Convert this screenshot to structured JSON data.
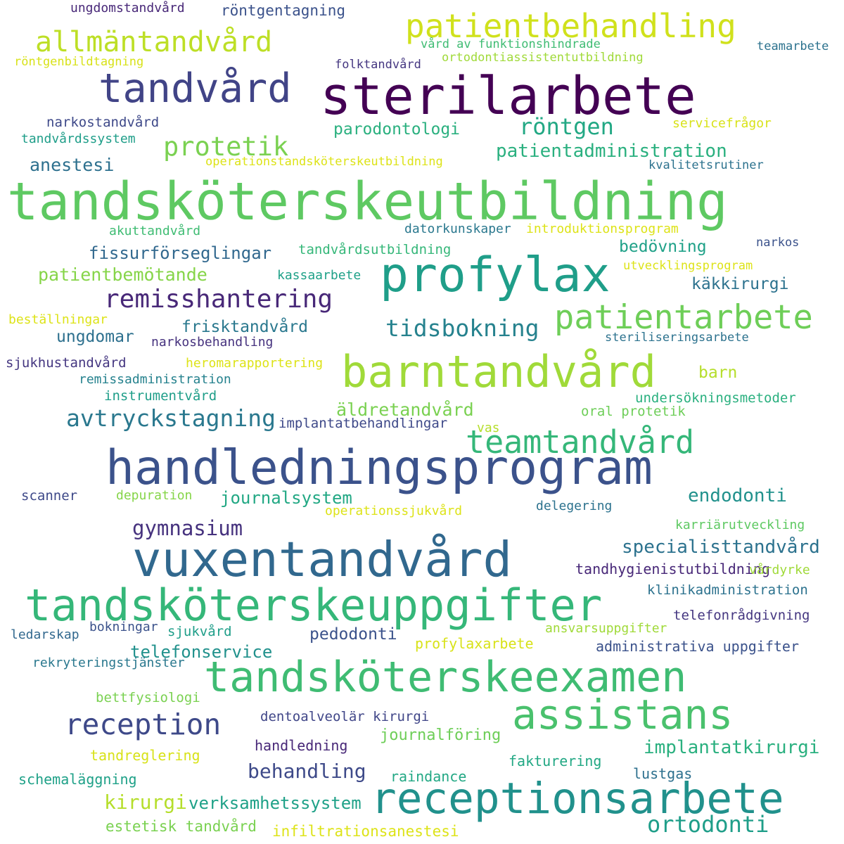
{
  "words": [
    {
      "text": "tandsköterskeutbildning",
      "color": "#5ec962"
    },
    {
      "text": "sterilarbete",
      "color": "#440154"
    },
    {
      "text": "handledningsprogram",
      "color": "#3b528b"
    },
    {
      "text": "vuxentandvård",
      "color": "#31688e"
    },
    {
      "text": "tandsköterskeuppgifter",
      "color": "#35b779"
    },
    {
      "text": "tandsköterskeexamen",
      "color": "#3fbc73"
    },
    {
      "text": "receptionsarbete",
      "color": "#21918c"
    },
    {
      "text": "barntandvård",
      "color": "#a0da39"
    },
    {
      "text": "profylax",
      "color": "#1f9e89"
    },
    {
      "text": "assistans",
      "color": "#4ac16d"
    },
    {
      "text": "tandvård",
      "color": "#414487"
    },
    {
      "text": "patientbehandling",
      "color": "#d0e11c"
    },
    {
      "text": "patientarbete",
      "color": "#6ece58"
    },
    {
      "text": "reception",
      "color": "#3e4989"
    },
    {
      "text": "teamtandvård",
      "color": "#35b779"
    },
    {
      "text": "allmäntandvård",
      "color": "#bddf26"
    },
    {
      "text": "remisshantering",
      "color": "#482878"
    },
    {
      "text": "protetik",
      "color": "#7ad151"
    },
    {
      "text": "avtryckstagning",
      "color": "#2a788e"
    },
    {
      "text": "tidsbokning",
      "color": "#26828e"
    },
    {
      "text": "röntgen",
      "color": "#22a884"
    },
    {
      "text": "gymnasium",
      "color": "#46327e"
    },
    {
      "text": "specialisttandvård",
      "color": "#2c728e"
    },
    {
      "text": "ortodonti",
      "color": "#1f9e89"
    },
    {
      "text": "patientadministration",
      "color": "#2ab07f"
    },
    {
      "text": "endodonti",
      "color": "#21918c"
    },
    {
      "text": "implantatkirurgi",
      "color": "#2ab07f"
    },
    {
      "text": "behandling",
      "color": "#3e4a89"
    },
    {
      "text": "kirurgi",
      "color": "#b5de2b"
    },
    {
      "text": "äldretandvård",
      "color": "#7ad151"
    },
    {
      "text": "patientbemötande",
      "color": "#86d549"
    },
    {
      "text": "journalsystem",
      "color": "#22a884"
    },
    {
      "text": "verksamhetssystem",
      "color": "#1fa188"
    },
    {
      "text": "telefonservice",
      "color": "#21918c"
    },
    {
      "text": "fissurförseglingar",
      "color": "#31688e"
    },
    {
      "text": "anestesi",
      "color": "#2d708e"
    },
    {
      "text": "parodontologi",
      "color": "#2ab07f"
    },
    {
      "text": "frisktandvård",
      "color": "#2a788e"
    },
    {
      "text": "pedodonti",
      "color": "#3b528b"
    },
    {
      "text": "käkkirurgi",
      "color": "#2c728e"
    },
    {
      "text": "bedövning",
      "color": "#1fa188"
    },
    {
      "text": "ungdomar",
      "color": "#2d708e"
    },
    {
      "text": "barn",
      "color": "#b5de2b"
    },
    {
      "text": "journalföring",
      "color": "#6ece58"
    },
    {
      "text": "infiltrationsanestesi",
      "color": "#dde318"
    },
    {
      "text": "estetisk tandvård",
      "color": "#7ad151"
    },
    {
      "text": "schemaläggning",
      "color": "#1fa188"
    },
    {
      "text": "tandreglering",
      "color": "#d8e219"
    },
    {
      "text": "handledning",
      "color": "#482878"
    },
    {
      "text": "dentoalveolär kirurgi",
      "color": "#404688"
    },
    {
      "text": "bettfysiologi",
      "color": "#7ad151"
    },
    {
      "text": "raindance",
      "color": "#22a884"
    },
    {
      "text": "lustgas",
      "color": "#2d708e"
    },
    {
      "text": "fakturering",
      "color": "#22a884"
    },
    {
      "text": "profylaxarbete",
      "color": "#d8e219"
    },
    {
      "text": "administrativa uppgifter",
      "color": "#3b528b"
    },
    {
      "text": "telefonrådgivning",
      "color": "#453781"
    },
    {
      "text": "ansvarsuppgifter",
      "color": "#a0da39"
    },
    {
      "text": "klinikadministration",
      "color": "#2c728e"
    },
    {
      "text": "tandhygienistutbildning",
      "color": "#482878"
    },
    {
      "text": "vårdyrke",
      "color": "#a0da39"
    },
    {
      "text": "karriärutveckling",
      "color": "#5ec962"
    },
    {
      "text": "delegering",
      "color": "#2c728e"
    },
    {
      "text": "operationssjukvård",
      "color": "#dde318"
    },
    {
      "text": "depuration",
      "color": "#86d549"
    },
    {
      "text": "scanner",
      "color": "#3e4989"
    },
    {
      "text": "rekryteringstjänster",
      "color": "#2a788e"
    },
    {
      "text": "ledarskap",
      "color": "#31688e"
    },
    {
      "text": "bokningar",
      "color": "#3b528b"
    },
    {
      "text": "sjukvård",
      "color": "#1f9e89"
    },
    {
      "text": "oral protetik",
      "color": "#6ece58"
    },
    {
      "text": "vas",
      "color": "#b5de2b"
    },
    {
      "text": "implantatbehandlingar",
      "color": "#3e4989"
    },
    {
      "text": "undersökningsmetoder",
      "color": "#2ab07f"
    },
    {
      "text": "steriliseringsarbete",
      "color": "#2c728e"
    },
    {
      "text": "instrumentvård",
      "color": "#1f9e89"
    },
    {
      "text": "remissadministration",
      "color": "#26828e"
    },
    {
      "text": "sjukhustandvård",
      "color": "#453781"
    },
    {
      "text": "heromarapportering",
      "color": "#dde318"
    },
    {
      "text": "narkosbehandling",
      "color": "#46327e"
    },
    {
      "text": "beställningar",
      "color": "#dde318"
    },
    {
      "text": "kassaarbete",
      "color": "#1fa188"
    },
    {
      "text": "utvecklingsprogram",
      "color": "#dde318"
    },
    {
      "text": "narkos",
      "color": "#3b528b"
    },
    {
      "text": "tandvårdsutbildning",
      "color": "#35b779"
    },
    {
      "text": "datorkunskaper",
      "color": "#2a788e"
    },
    {
      "text": "introduktionsprogram",
      "color": "#dde318"
    },
    {
      "text": "akuttandvård",
      "color": "#3fbc73"
    },
    {
      "text": "operationstandsköterskeutbildning",
      "color": "#dde318"
    },
    {
      "text": "kvalitetsrutiner",
      "color": "#2c728e"
    },
    {
      "text": "servicefrågor",
      "color": "#d8e219"
    },
    {
      "text": "tandvårdssystem",
      "color": "#1f9e89"
    },
    {
      "text": "narkostandvård",
      "color": "#3e4989"
    },
    {
      "text": "röntgenbildtagning",
      "color": "#d8e219"
    },
    {
      "text": "folktandvård",
      "color": "#453781"
    },
    {
      "text": "ortodontiassistentutbildning",
      "color": "#a0da39"
    },
    {
      "text": "vård av funktionshindrade",
      "color": "#3fbc73"
    },
    {
      "text": "teamarbete",
      "color": "#2c728e"
    },
    {
      "text": "röntgentagning",
      "color": "#3b528b"
    },
    {
      "text": "ungdomstandvård",
      "color": "#482878"
    }
  ]
}
